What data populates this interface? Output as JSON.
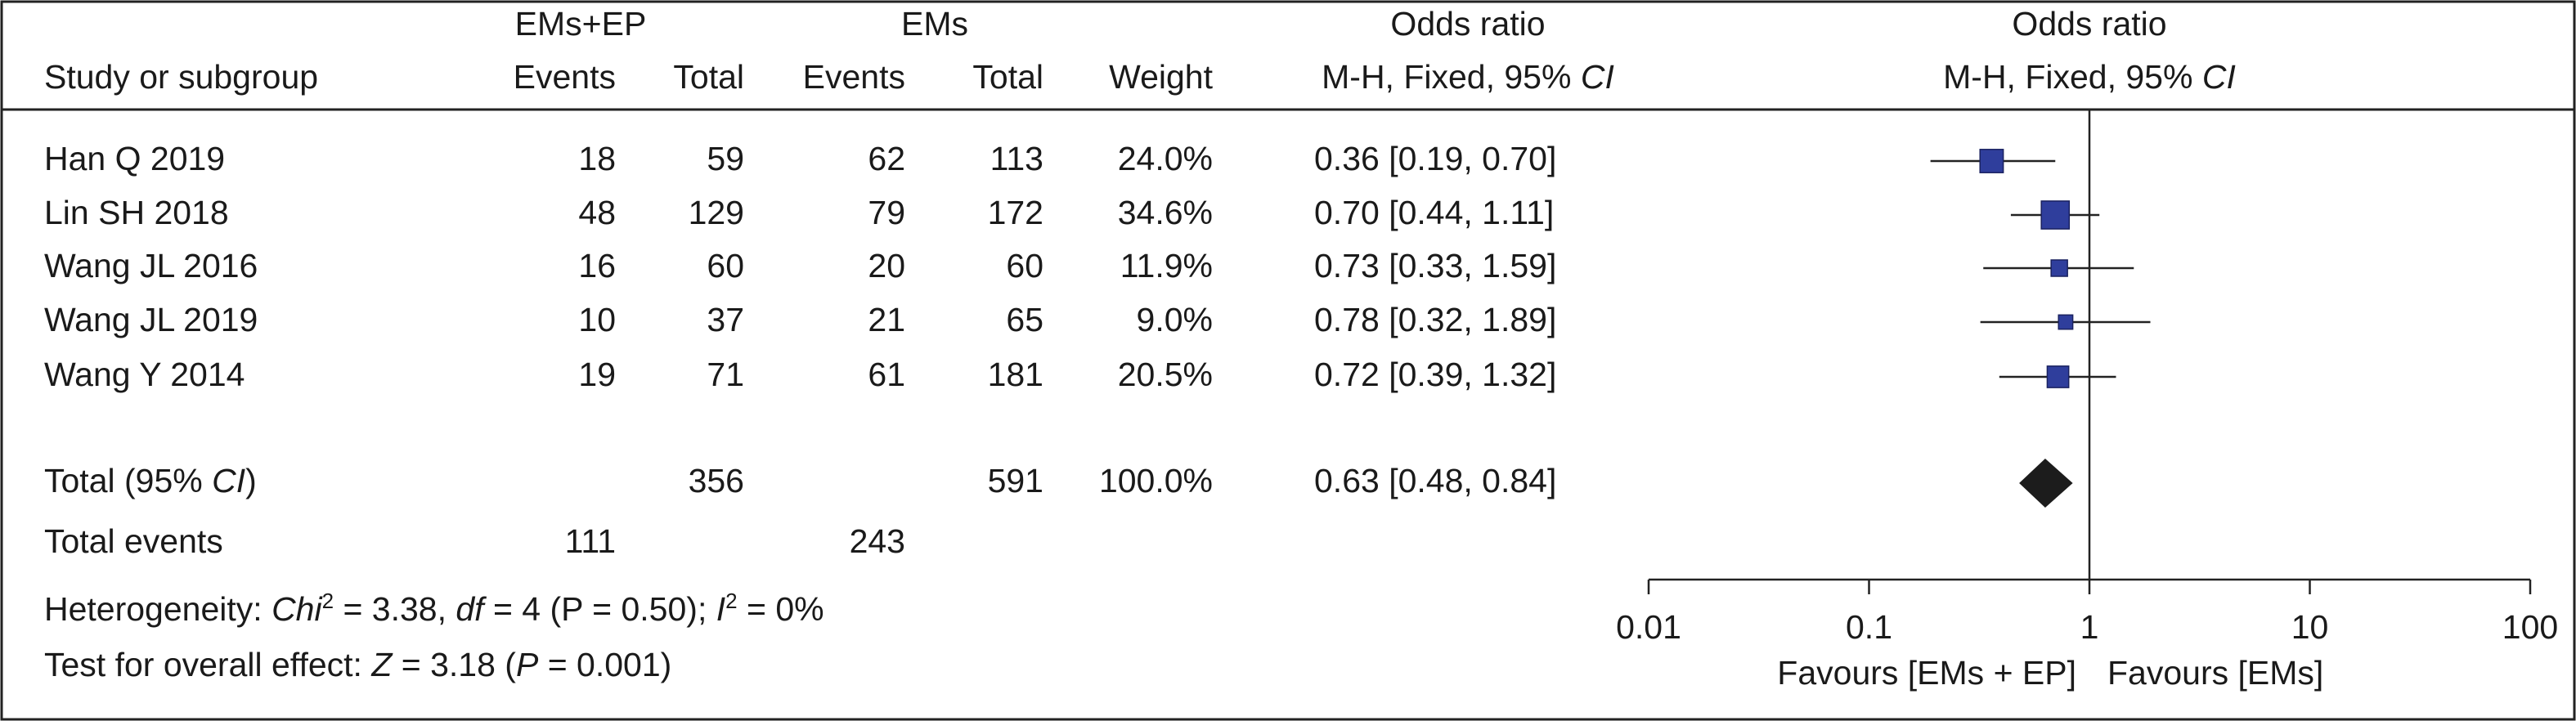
{
  "chart_data": {
    "type": "forest",
    "headers": {
      "exp_group": "EMs+EP",
      "ctrl_group": "EMs",
      "or_group": "Odds ratio",
      "plot_group": "Odds ratio",
      "study": "Study or subgroup",
      "exp_events": "Events",
      "exp_total": "Total",
      "ctrl_events": "Events",
      "ctrl_total": "Total",
      "weight": "Weight",
      "or_method": [
        "M-H, Fixed, 95% ",
        "CI"
      ],
      "plot_method": [
        "M-H, Fixed, 95% ",
        "CI"
      ]
    },
    "studies": [
      {
        "name": "Han Q 2019",
        "exp_events": 18,
        "exp_total": 59,
        "ctrl_events": 62,
        "ctrl_total": 113,
        "weight": 24.0,
        "weight_label": "24.0%",
        "or": 0.36,
        "ci": [
          0.19,
          0.7
        ],
        "or_label": "0.36 [0.19, 0.70]"
      },
      {
        "name": "Lin SH 2018",
        "exp_events": 48,
        "exp_total": 129,
        "ctrl_events": 79,
        "ctrl_total": 172,
        "weight": 34.6,
        "weight_label": "34.6%",
        "or": 0.7,
        "ci": [
          0.44,
          1.11
        ],
        "or_label": "0.70 [0.44, 1.11]"
      },
      {
        "name": "Wang JL 2016",
        "exp_events": 16,
        "exp_total": 60,
        "ctrl_events": 20,
        "ctrl_total": 60,
        "weight": 11.9,
        "weight_label": "11.9%",
        "or": 0.73,
        "ci": [
          0.33,
          1.59
        ],
        "or_label": "0.73 [0.33, 1.59]"
      },
      {
        "name": "Wang JL 2019",
        "exp_events": 10,
        "exp_total": 37,
        "ctrl_events": 21,
        "ctrl_total": 65,
        "weight": 9.0,
        "weight_label": "9.0%",
        "or": 0.78,
        "ci": [
          0.32,
          1.89
        ],
        "or_label": "0.78 [0.32, 1.89]"
      },
      {
        "name": "Wang Y 2014",
        "exp_events": 19,
        "exp_total": 71,
        "ctrl_events": 61,
        "ctrl_total": 181,
        "weight": 20.5,
        "weight_label": "20.5%",
        "or": 0.72,
        "ci": [
          0.39,
          1.32
        ],
        "or_label": "0.72 [0.39, 1.32]"
      }
    ],
    "total": {
      "name": [
        "Total (95% ",
        "CI",
        ")"
      ],
      "exp_total": 356,
      "ctrl_total": 591,
      "weight": 100.0,
      "weight_label": "100.0%",
      "or": 0.63,
      "ci": [
        0.48,
        0.84
      ],
      "or_label": "0.63 [0.48, 0.84]"
    },
    "total_events": {
      "name": "Total events",
      "exp": 111,
      "ctrl": 243
    },
    "heterogeneity": [
      "Heterogeneity: ",
      "Chi",
      "2",
      " = 3.38, ",
      "df",
      " = 4 (",
      "P",
      " = 0.50); ",
      "I",
      "2",
      " = 0%"
    ],
    "overall_effect": [
      "Test for overall effect: ",
      "Z",
      " = 3.18 (",
      "P",
      " = 0.001)"
    ],
    "log_scale": true,
    "xlim": [
      0.01,
      100
    ],
    "xticks": [
      0.01,
      0.1,
      1,
      10,
      100
    ],
    "favours_left": "Favours [EMs + EP]",
    "favours_right": "Favours [EMs]",
    "square_color": "#2f3e9c",
    "diamond_color": "#1c1c1c"
  }
}
